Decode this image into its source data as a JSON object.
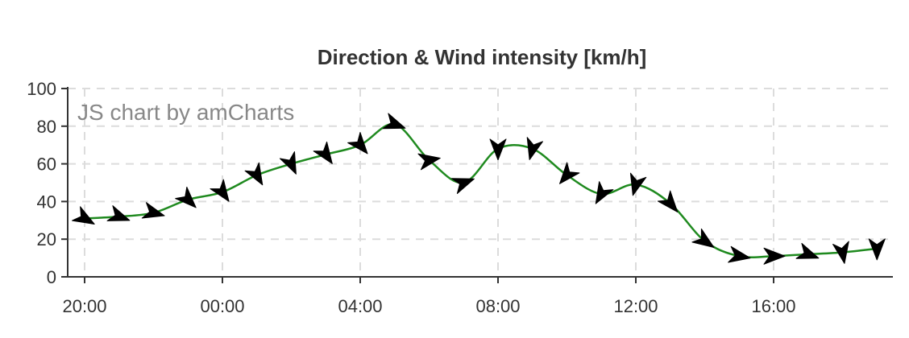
{
  "chart_data": {
    "type": "line",
    "title": "Direction & Wind intensity [km/h]",
    "watermark": "JS chart by amCharts",
    "xlabel": "",
    "ylabel": "",
    "ylim": [
      0,
      100
    ],
    "y_ticks": [
      "0",
      "20",
      "40",
      "60",
      "80",
      "100"
    ],
    "x_ticks": [
      "20:00",
      "00:00",
      "04:00",
      "08:00",
      "12:00",
      "16:00"
    ],
    "grid": true,
    "legend": "none",
    "x": [
      "20:00",
      "21:00",
      "22:00",
      "23:00",
      "00:00",
      "01:00",
      "02:00",
      "03:00",
      "04:00",
      "05:00",
      "06:00",
      "07:00",
      "08:00",
      "09:00",
      "10:00",
      "11:00",
      "12:00",
      "13:00",
      "14:00",
      "15:00",
      "16:00",
      "17:00",
      "18:00",
      "19:00"
    ],
    "values": [
      31,
      32,
      34,
      41,
      45,
      54,
      60,
      65,
      70,
      81,
      62,
      50,
      68,
      68,
      54,
      44,
      49,
      39,
      19,
      11,
      11,
      12,
      13,
      15
    ],
    "directions_deg": [
      210,
      200,
      195,
      225,
      235,
      240,
      245,
      235,
      230,
      200,
      170,
      160,
      270,
      285,
      310,
      300,
      285,
      230,
      215,
      190,
      180,
      200,
      260,
      270
    ],
    "colors": {
      "line": "#1f8a1f",
      "arrow": "#000000",
      "grid": "#dcdcdc",
      "axis": "#333333"
    }
  }
}
